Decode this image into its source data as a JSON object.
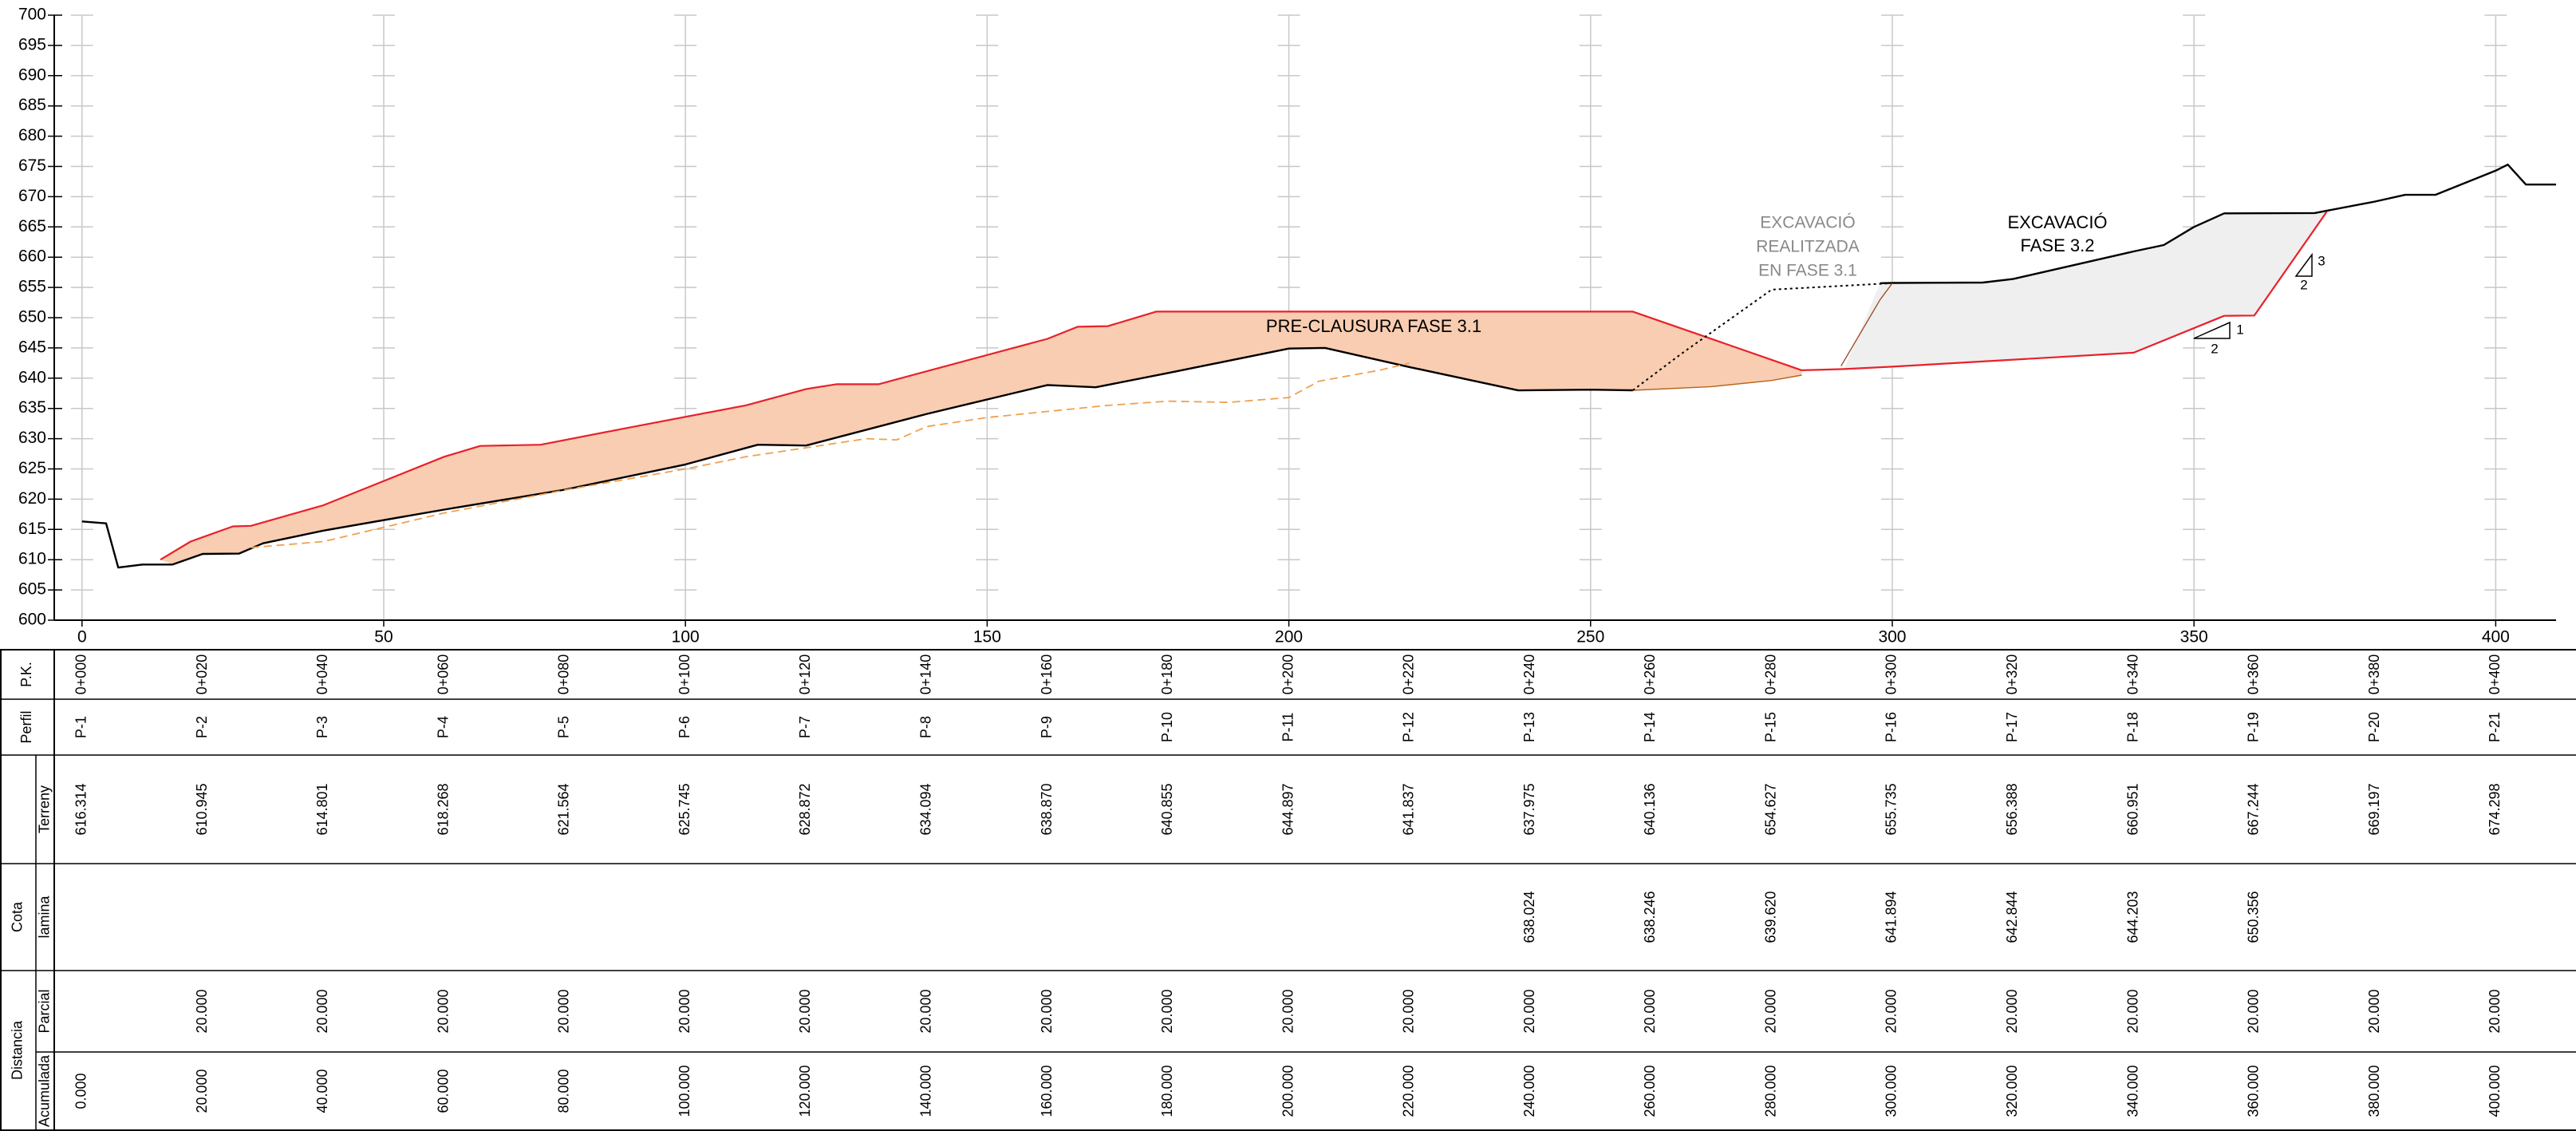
{
  "chart_data": {
    "type": "line",
    "xlim": [
      -4.6,
      410
    ],
    "ylim": [
      600,
      700
    ],
    "xticks": [
      0,
      50,
      100,
      150,
      200,
      250,
      300,
      350,
      400
    ],
    "yticks": [
      600,
      605,
      610,
      615,
      620,
      625,
      630,
      635,
      640,
      645,
      650,
      655,
      660,
      665,
      670,
      675,
      680,
      685,
      690,
      695,
      700
    ],
    "grid": true,
    "series": [
      {
        "color": "#000000",
        "style": "solid",
        "width": 2.4,
        "x": [
          0,
          4,
          6,
          10,
          15,
          20,
          26,
          30,
          40,
          60,
          80,
          100,
          112,
          120,
          140,
          160,
          168,
          180,
          200,
          206,
          220,
          238,
          250,
          257
        ],
        "values": [
          616.314,
          616,
          608.7,
          609.2,
          609.2,
          610.945,
          611,
          612.7,
          614.801,
          618.268,
          621.564,
          625.745,
          629,
          628.872,
          634.094,
          638.87,
          638.5,
          640.855,
          644.897,
          645,
          641.837,
          637.975,
          638.1,
          638
        ]
      },
      {
        "color": "#000000",
        "style": "solid",
        "width": 2.4,
        "x": [
          298,
          300,
          315,
          320,
          340,
          345,
          350,
          355,
          370,
          380,
          385,
          390,
          400,
          402,
          405,
          410
        ],
        "values": [
          655.7,
          655.735,
          655.8,
          656.388,
          660.951,
          662,
          665,
          667.244,
          667.3,
          669.197,
          670.3,
          670.3,
          674.298,
          675.3,
          672,
          672
        ]
      },
      {
        "color": "#e8212b",
        "style": "solid",
        "width": 2.2,
        "x": [
          13,
          18,
          25,
          28,
          40,
          60,
          66,
          76,
          90,
          110,
          120,
          125,
          132,
          160,
          165,
          170,
          178,
          257,
          285,
          292,
          300,
          340,
          355,
          360,
          372
        ],
        "values": [
          610,
          613,
          615.5,
          615.6,
          619,
          627,
          628.8,
          629,
          631.7,
          635.5,
          638.2,
          639,
          639,
          646.5,
          648.5,
          648.6,
          651,
          651,
          641.3,
          641.5,
          641.894,
          644.203,
          650.3,
          650.356,
          667.5
        ]
      },
      {
        "color": "#b5651d",
        "style": "solid",
        "width": 1.4,
        "x": [
          257,
          270,
          280,
          285
        ],
        "values": [
          638,
          638.6,
          639.62,
          640.5
        ]
      },
      {
        "color": "#f0a050",
        "style": "dashed",
        "width": 1.8,
        "x": [
          28,
          40,
          60,
          80,
          100,
          110,
          120,
          130,
          135,
          140,
          150,
          170,
          180,
          190,
          200,
          205,
          215,
          220
        ],
        "values": [
          612,
          613,
          617.7,
          621.5,
          625,
          627,
          628.5,
          630,
          629.8,
          632,
          633.5,
          635.5,
          636.2,
          636,
          636.8,
          639.5,
          641.3,
          642.5
        ]
      },
      {
        "color": "#000000",
        "style": "dotted",
        "width": 2,
        "x": [
          257,
          265,
          280,
          300
        ],
        "values": [
          638,
          644,
          654.627,
          655.7
        ]
      },
      {
        "color": "#a0522d",
        "style": "solid",
        "width": 1.4,
        "x": [
          291.5,
          298,
          300
        ],
        "values": [
          642,
          653,
          655.7
        ]
      }
    ],
    "fills": [
      {
        "color": "#f9cdb1"
      },
      {
        "color": "#efefef"
      }
    ],
    "annotations": [
      "PRE-CLAUSURA FASE 3.1",
      "EXCAVACIÓ",
      "REALITZADA",
      "EN FASE 3.1",
      "EXCAVACIÓ",
      "FASE 3.2",
      "1",
      "2",
      "3",
      "2"
    ]
  },
  "table": {
    "rows": [
      {
        "label": "P.K.",
        "cells": [
          "0+000",
          "0+020",
          "0+040",
          "0+060",
          "0+080",
          "0+100",
          "0+120",
          "0+140",
          "0+160",
          "0+180",
          "0+200",
          "0+220",
          "0+240",
          "0+260",
          "0+280",
          "0+300",
          "0+320",
          "0+340",
          "0+360",
          "0+380",
          "0+400"
        ]
      },
      {
        "label": "Perfil",
        "cells": [
          "P-1",
          "P-2",
          "P-3",
          "P-4",
          "P-5",
          "P-6",
          "P-7",
          "P-8",
          "P-9",
          "P-10",
          "P-11",
          "P-12",
          "P-13",
          "P-14",
          "P-15",
          "P-16",
          "P-17",
          "P-18",
          "P-19",
          "P-20",
          "P-21"
        ]
      },
      {
        "label": "Terreny",
        "cells": [
          "616.314",
          "610.945",
          "614.801",
          "618.268",
          "621.564",
          "625.745",
          "628.872",
          "634.094",
          "638.870",
          "640.855",
          "644.897",
          "641.837",
          "637.975",
          "640.136",
          "654.627",
          "655.735",
          "656.388",
          "660.951",
          "667.244",
          "669.197",
          "674.298"
        ]
      },
      {
        "group": "Cota",
        "label": "lamina",
        "cells": [
          null,
          null,
          null,
          null,
          null,
          null,
          null,
          null,
          null,
          null,
          null,
          null,
          "638.024",
          "638.246",
          "639.620",
          "641.894",
          "642.844",
          "644.203",
          "650.356",
          null,
          null
        ]
      },
      {
        "group": "Distancia",
        "label": "Parcial",
        "cells": [
          null,
          "20.000",
          "20.000",
          "20.000",
          "20.000",
          "20.000",
          "20.000",
          "20.000",
          "20.000",
          "20.000",
          "20.000",
          "20.000",
          "20.000",
          "20.000",
          "20.000",
          "20.000",
          "20.000",
          "20.000",
          "20.000",
          "20.000",
          "20.000"
        ]
      },
      {
        "group": "Distancia",
        "label": "Acumulada",
        "cells": [
          "0.000",
          "20.000",
          "40.000",
          "60.000",
          "80.000",
          "100.000",
          "120.000",
          "140.000",
          "160.000",
          "180.000",
          "200.000",
          "220.000",
          "240.000",
          "260.000",
          "280.000",
          "300.000",
          "320.000",
          "340.000",
          "360.000",
          "380.000",
          "400.000"
        ]
      }
    ]
  }
}
